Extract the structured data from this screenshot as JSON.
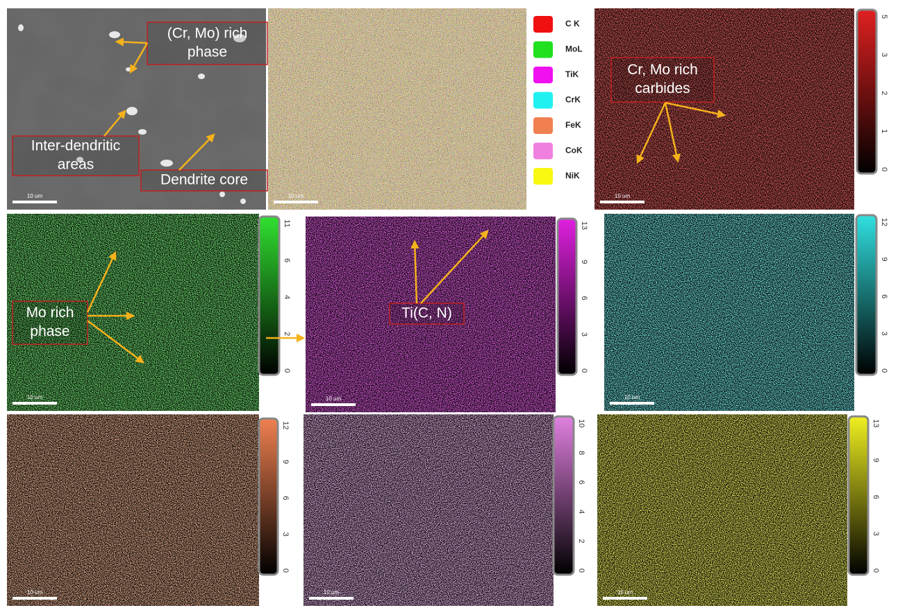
{
  "legend": [
    "C K",
    "MoL",
    "TiK",
    "CrK",
    "FeK",
    "CoK",
    "NiK"
  ],
  "annotations": [
    {
      "lines": [
        "(Cr, Mo) rich",
        "phase"
      ]
    },
    {
      "lines": [
        "Inter-dendritic",
        "areas"
      ]
    },
    {
      "lines": [
        "Dendrite core"
      ]
    },
    {
      "lines": [
        "Cr, Mo rich",
        "carbides"
      ]
    },
    {
      "lines": [
        "Mo rich",
        "phase"
      ]
    },
    {
      "lines": [
        "Ti(C, N)"
      ]
    }
  ],
  "panels": [
    {
      "scale_bar": "10 um"
    },
    {
      "scale_bar": "10 um"
    },
    {
      "scale_bar": "10 um",
      "colorbar_ticks": [
        5,
        3,
        2,
        1,
        0
      ]
    },
    {
      "scale_bar": "10 um",
      "colorbar_ticks": [
        11,
        6,
        4,
        2,
        0
      ]
    },
    {
      "scale_bar": "10 um",
      "colorbar_ticks": [
        13,
        9,
        6,
        3,
        0
      ]
    },
    {
      "scale_bar": "10 um",
      "colorbar_ticks": [
        12,
        9,
        6,
        3,
        0
      ]
    },
    {
      "scale_bar": "10 um",
      "colorbar_ticks": [
        12,
        9,
        6,
        3,
        0
      ]
    },
    {
      "scale_bar": "10 um",
      "colorbar_ticks": [
        10,
        8,
        6,
        4,
        2,
        0
      ]
    },
    {
      "scale_bar": "10 um",
      "colorbar_ticks": [
        13,
        9,
        6,
        3,
        0
      ]
    }
  ]
}
